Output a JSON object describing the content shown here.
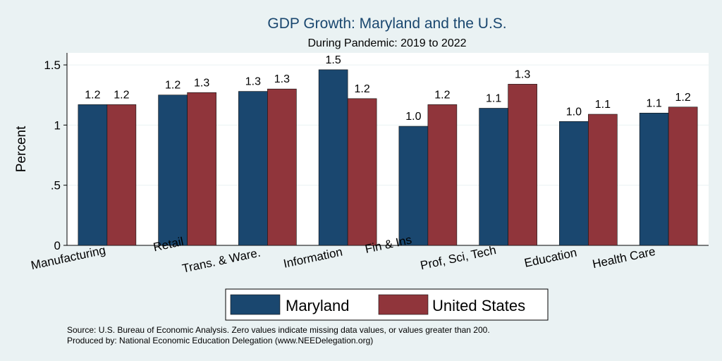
{
  "chart_data": {
    "type": "bar",
    "title": "GDP Growth: Maryland and the U.S.",
    "subtitle": "During Pandemic: 2019 to 2022",
    "xlabel": "",
    "ylabel": "Percent",
    "ylim": [
      0,
      1.6
    ],
    "yticks": [
      0,
      0.5,
      1,
      1.5
    ],
    "ytick_labels": [
      "0",
      ".5",
      "1",
      "1.5"
    ],
    "grid": true,
    "legend_position": "bottom",
    "categories": [
      "Manufacturing",
      "Retail",
      "Trans. & Ware.",
      "Information",
      "Fin & Ins",
      "Prof, Sci, Tech",
      "Education",
      "Health Care"
    ],
    "series": [
      {
        "name": "Maryland",
        "color": "#1a476f",
        "values": [
          1.17,
          1.25,
          1.28,
          1.46,
          0.99,
          1.14,
          1.03,
          1.1
        ],
        "labels": [
          "1.2",
          "1.2",
          "1.3",
          "1.5",
          "1.0",
          "1.1",
          "1.0",
          "1.1"
        ]
      },
      {
        "name": "United States",
        "color": "#90353b",
        "values": [
          1.17,
          1.27,
          1.3,
          1.22,
          1.17,
          1.34,
          1.09,
          1.15
        ],
        "labels": [
          "1.2",
          "1.3",
          "1.3",
          "1.2",
          "1.2",
          "1.3",
          "1.1",
          "1.2"
        ]
      }
    ]
  },
  "footer": {
    "source": "Source: U.S. Bureau of Economic Analysis. Zero values indicate missing data values, or values greater than 200.",
    "produced_by": "Produced by: National Economic Education Delegation (www.NEEDelegation.org)"
  }
}
